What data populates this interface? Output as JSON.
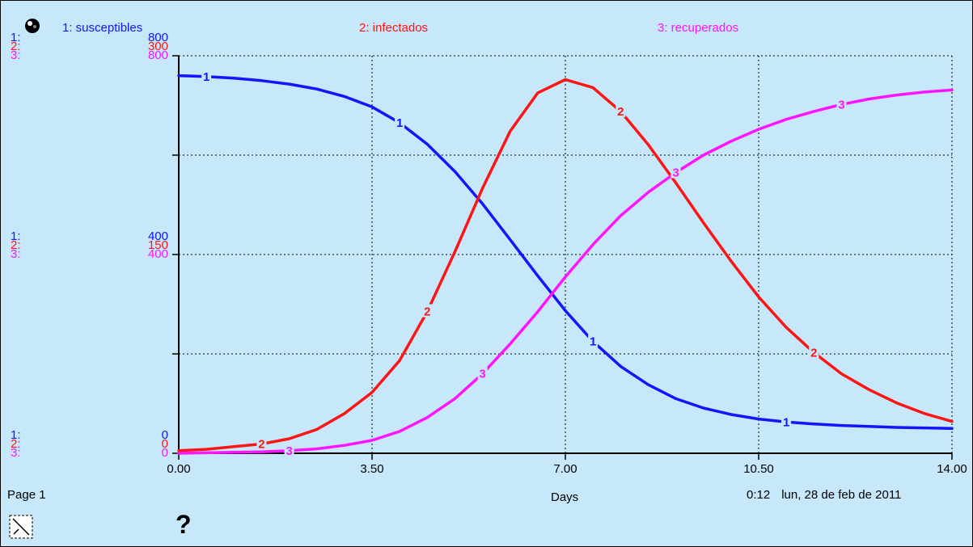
{
  "legend": [
    {
      "label": "1: susceptibles",
      "color": "#1414ff"
    },
    {
      "label": "2: infectados",
      "color": "#ff1414"
    },
    {
      "label": "3: recuperados",
      "color": "#ff14ff"
    }
  ],
  "axis_scales": [
    {
      "prefix": "1:",
      "top": "800",
      "mid": "400",
      "bottom": "0",
      "color": "#1414ff"
    },
    {
      "prefix": "2:",
      "top": "300",
      "mid": "150",
      "bottom": "0",
      "color": "#ff1414"
    },
    {
      "prefix": "3:",
      "top": "800",
      "mid": "400",
      "bottom": "0",
      "color": "#ff14ff"
    }
  ],
  "footer": {
    "page": "Page 1",
    "xlabel": "Days",
    "time": "0:12",
    "date": "lun, 28 de feb de 2011"
  },
  "icons": {
    "pin": "pin-icon",
    "lock": "lock-icon",
    "help": "help-icon"
  },
  "help_glyph": "?",
  "chart_data": {
    "type": "line",
    "xlabel": "Days",
    "xlim": [
      0,
      14
    ],
    "xticks": [
      "0.00",
      "3.50",
      "7.00",
      "10.50",
      "14.00"
    ],
    "grid": true,
    "legend_position": "top",
    "series": [
      {
        "name": "1: susceptibles",
        "marker": "1",
        "color": "#1414ff",
        "ylim": [
          0,
          800
        ],
        "x": [
          0,
          0.5,
          1,
          1.5,
          2,
          2.5,
          3,
          3.5,
          4,
          4.5,
          5,
          5.5,
          6,
          6.5,
          7,
          7.5,
          8,
          8.5,
          9,
          9.5,
          10,
          10.5,
          11,
          11.5,
          12,
          12.5,
          13,
          13.5,
          14
        ],
        "y": [
          760,
          758,
          755,
          750,
          743,
          733,
          718,
          697,
          665,
          622,
          567,
          502,
          430,
          357,
          287,
          225,
          175,
          138,
          110,
          91,
          78,
          69,
          63,
          59,
          56,
          54,
          52,
          51,
          50
        ]
      },
      {
        "name": "2: infectados",
        "marker": "2",
        "color": "#ff1414",
        "ylim": [
          0,
          300
        ],
        "x": [
          0,
          0.5,
          1,
          1.5,
          2,
          2.5,
          3,
          3.5,
          4,
          4.5,
          5,
          5.5,
          6,
          6.5,
          7,
          7.5,
          8,
          8.5,
          9,
          9.5,
          10,
          10.5,
          11,
          11.5,
          12,
          12.5,
          13,
          13.5,
          14
        ],
        "y": [
          2,
          3,
          5,
          7,
          11,
          18,
          30,
          46,
          70,
          107,
          152,
          200,
          243,
          272,
          282,
          276,
          258,
          233,
          204,
          174,
          145,
          118,
          95,
          76,
          60,
          48,
          38,
          30,
          24
        ]
      },
      {
        "name": "3: recuperados",
        "marker": "3",
        "color": "#ff14ff",
        "ylim": [
          0,
          800
        ],
        "x": [
          0,
          0.5,
          1,
          1.5,
          2,
          2.5,
          3,
          3.5,
          4,
          4.5,
          5,
          5.5,
          6,
          6.5,
          7,
          7.5,
          8,
          8.5,
          9,
          9.5,
          10,
          10.5,
          11,
          11.5,
          12,
          12.5,
          13,
          13.5,
          14
        ],
        "y": [
          0,
          1,
          2,
          3,
          5,
          9,
          16,
          26,
          44,
          72,
          110,
          160,
          220,
          285,
          355,
          420,
          478,
          525,
          565,
          600,
          628,
          652,
          672,
          688,
          702,
          713,
          721,
          727,
          731
        ]
      }
    ]
  }
}
